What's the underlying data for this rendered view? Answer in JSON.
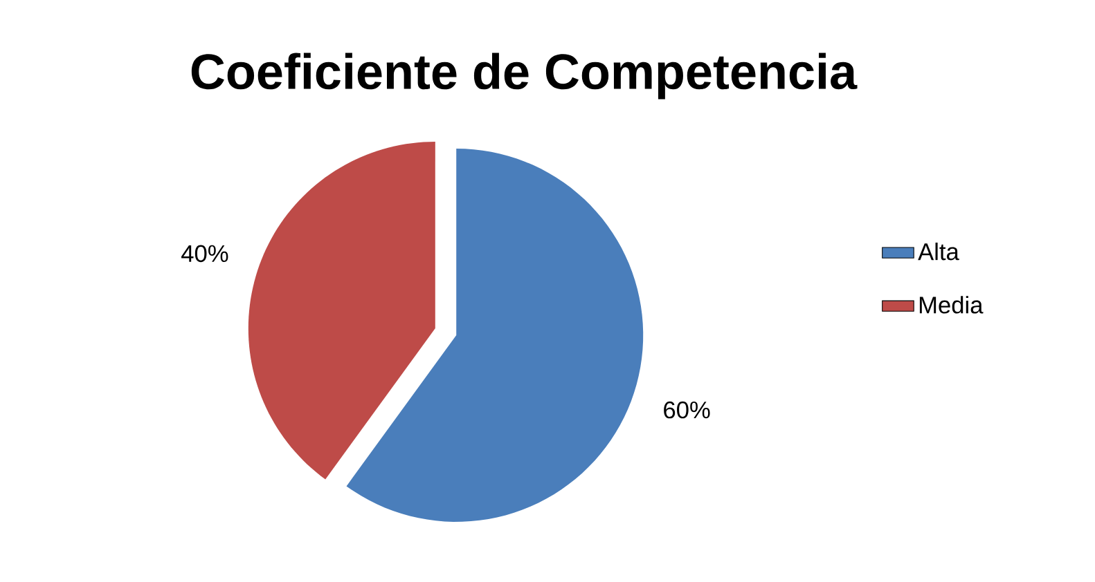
{
  "chart_data": {
    "type": "pie",
    "title": "Coeficiente de Competencia",
    "categories": [
      "Alta",
      "Media"
    ],
    "values": [
      60,
      40
    ],
    "colors": [
      "#4a7ebb",
      "#be4b48"
    ],
    "value_labels": [
      "60%",
      "40%"
    ],
    "legend": "right"
  }
}
